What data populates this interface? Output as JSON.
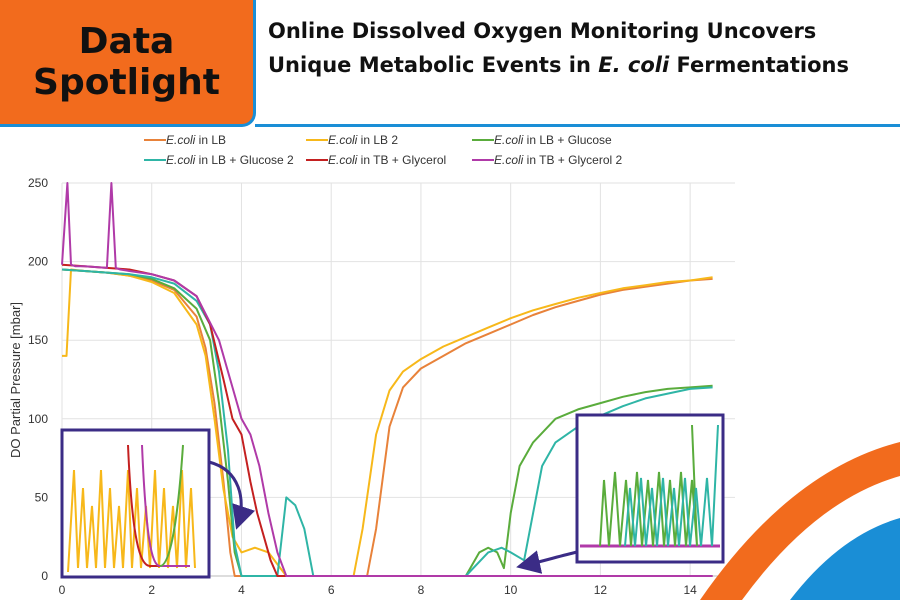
{
  "header": {
    "badge_line1": "Data",
    "badge_line2": "Spotlight",
    "title_part1": "Online Dissolved Oxygen Monitoring Uncovers Unique Metabolic Events in ",
    "title_italic": "E. coli",
    "title_part3": " Fermentations"
  },
  "chart_data": {
    "type": "line",
    "title": "",
    "xlabel": "",
    "ylabel": "DO Partial Pressure [mbar]",
    "xlim": [
      0,
      15
    ],
    "ylim": [
      0,
      250
    ],
    "x_ticks": [
      0,
      2,
      4,
      6,
      8,
      10,
      12,
      14
    ],
    "y_ticks": [
      0,
      50,
      100,
      150,
      200,
      250
    ],
    "grid": true,
    "legend_position": "top",
    "series": [
      {
        "name": "E.coli in LB",
        "legend_italic": "E.coli",
        "legend_rest": " in LB",
        "color": "#e8823a",
        "x": [
          0.0,
          0.5,
          1.0,
          1.5,
          2.0,
          2.5,
          3.0,
          3.2,
          3.4,
          3.6,
          3.75,
          3.85,
          4.0,
          4.3,
          4.6,
          5.0,
          5.4,
          5.8,
          6.5,
          6.8,
          7.0,
          7.3,
          7.6,
          8.0,
          8.5,
          9.0,
          9.5,
          10.0,
          10.5,
          11.0,
          11.5,
          12.0,
          12.5,
          13.0,
          13.5,
          14.0,
          14.5
        ],
        "y": [
          195,
          194,
          193,
          191,
          188,
          182,
          165,
          145,
          110,
          60,
          15,
          0,
          0,
          0,
          0,
          0,
          0,
          0,
          0,
          0,
          30,
          95,
          120,
          132,
          140,
          148,
          154,
          160,
          166,
          171,
          175,
          179,
          182,
          184,
          186,
          188,
          189
        ]
      },
      {
        "name": "E.coli in LB 2",
        "legend_italic": "E.coli",
        "legend_rest": " in LB 2",
        "color": "#f7b81a",
        "x": [
          0.0,
          0.1,
          0.2,
          0.5,
          1.0,
          1.5,
          2.0,
          2.5,
          3.0,
          3.2,
          3.4,
          3.6,
          3.8,
          4.0,
          4.3,
          4.6,
          5.0,
          5.4,
          5.8,
          6.5,
          6.7,
          7.0,
          7.3,
          7.6,
          8.0,
          8.5,
          9.0,
          9.5,
          10.0,
          10.5,
          11.0,
          11.5,
          12.0,
          12.5,
          13.0,
          13.5,
          14.0,
          14.5
        ],
        "y": [
          140,
          140,
          195,
          194,
          193,
          191,
          187,
          180,
          160,
          140,
          100,
          55,
          25,
          15,
          18,
          15,
          0,
          0,
          0,
          0,
          30,
          90,
          118,
          130,
          138,
          146,
          152,
          158,
          164,
          169,
          173,
          177,
          180,
          183,
          185,
          187,
          188,
          190
        ]
      },
      {
        "name": "E.coli in LB + Glucose",
        "legend_italic": "E.coli",
        "legend_rest": " in LB + Glucose",
        "color": "#5aac3c",
        "x": [
          0.0,
          0.5,
          1.0,
          1.5,
          2.0,
          2.5,
          3.0,
          3.3,
          3.5,
          3.7,
          3.85,
          4.0,
          4.5,
          5.0,
          6.0,
          7.0,
          8.0,
          9.0,
          9.3,
          9.5,
          9.7,
          9.85,
          10.0,
          10.2,
          10.5,
          11.0,
          11.5,
          12.0,
          12.5,
          13.0,
          13.5,
          14.0,
          14.5
        ],
        "y": [
          195,
          194,
          193,
          192,
          189,
          183,
          170,
          150,
          110,
          60,
          15,
          0,
          0,
          0,
          0,
          0,
          0,
          0,
          15,
          18,
          15,
          5,
          40,
          70,
          85,
          100,
          106,
          110,
          114,
          117,
          119,
          120,
          121
        ]
      },
      {
        "name": "E.coli in LB + Glucose 2",
        "legend_italic": "E.coli",
        "legend_rest": " in LB + Glucose 2",
        "color": "#2fb5a6",
        "x": [
          0.0,
          0.5,
          1.0,
          1.5,
          2.0,
          2.5,
          3.0,
          3.3,
          3.5,
          3.7,
          3.85,
          4.0,
          4.5,
          4.8,
          5.0,
          5.2,
          5.4,
          5.6,
          6.0,
          7.0,
          8.0,
          9.0,
          9.5,
          9.8,
          10.0,
          10.3,
          10.5,
          10.7,
          11.0,
          11.5,
          12.0,
          12.5,
          13.0,
          13.5,
          14.0,
          14.5
        ],
        "y": [
          195,
          194,
          193,
          192,
          190,
          186,
          175,
          160,
          130,
          80,
          20,
          0,
          0,
          0,
          50,
          45,
          30,
          0,
          0,
          0,
          0,
          0,
          15,
          18,
          15,
          10,
          40,
          70,
          85,
          95,
          102,
          108,
          113,
          116,
          119,
          120
        ]
      },
      {
        "name": "E.coli in TB + Glycerol",
        "legend_italic": "E.coli",
        "legend_rest": " in TB + Glycerol",
        "color": "#c42020",
        "x": [
          0.0,
          0.5,
          1.0,
          1.5,
          2.0,
          2.5,
          3.0,
          3.3,
          3.6,
          3.8,
          4.0,
          4.2,
          4.35,
          4.5,
          4.65,
          4.8,
          5.0,
          6.0,
          7.0,
          8.0,
          9.0,
          10.0,
          11.0,
          12.0,
          13.0,
          14.0,
          14.5
        ],
        "y": [
          198,
          197,
          196,
          195,
          192,
          188,
          178,
          160,
          125,
          100,
          90,
          60,
          40,
          25,
          10,
          0,
          0,
          0,
          0,
          0,
          0,
          0,
          0,
          0,
          0,
          0,
          0
        ]
      },
      {
        "name": "E.coli in TB + Glycerol 2",
        "legend_italic": "E.coli",
        "legend_rest": " in TB + Glycerol 2",
        "color": "#b03aa8",
        "x": [
          0.0,
          0.12,
          0.2,
          0.3,
          0.5,
          1.0,
          1.1,
          1.2,
          1.3,
          1.5,
          2.0,
          2.5,
          3.0,
          3.5,
          3.8,
          4.0,
          4.2,
          4.4,
          4.6,
          4.8,
          5.0,
          5.2,
          6.0,
          7.0,
          8.0,
          9.0,
          10.0,
          11.0,
          12.0,
          13.0,
          14.0,
          14.5
        ],
        "y": [
          198,
          250,
          198,
          197,
          197,
          196,
          250,
          196,
          195,
          194,
          192,
          188,
          178,
          150,
          120,
          100,
          90,
          70,
          40,
          15,
          0,
          0,
          0,
          0,
          0,
          0,
          0,
          0,
          0,
          0,
          0,
          0
        ]
      }
    ]
  }
}
